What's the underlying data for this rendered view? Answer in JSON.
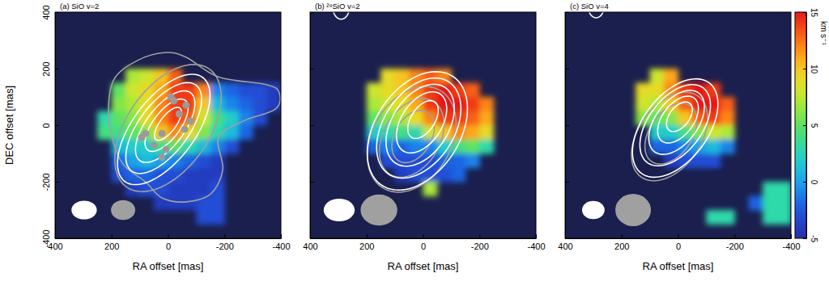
{
  "chart_data": [
    {
      "type": "heatmap",
      "title": "(a) SiO v=2",
      "xlabel": "RA offset [mas]",
      "ylabel": "DEC offset [mas]",
      "xlim": [
        400,
        -400
      ],
      "ylim": [
        -400,
        400
      ],
      "xticks": [
        400,
        200,
        0,
        -200,
        -400
      ],
      "yticks": [
        -400,
        -200,
        0,
        200,
        400
      ],
      "cells": {
        "x": [
          225,
          175,
          125,
          75,
          25,
          -25,
          -75,
          -125,
          -175,
          -225,
          -275,
          -325,
          -375
        ],
        "y": [
          175,
          125,
          75,
          25,
          -25,
          -75,
          -125,
          -175,
          -225,
          -275,
          -325
        ],
        "values": [
          [
            null,
            null,
            7,
            8,
            10,
            13,
            null,
            null,
            null,
            null,
            null,
            null,
            null
          ],
          [
            null,
            5,
            8,
            9,
            11,
            14,
            14,
            12,
            -1,
            -2,
            -3,
            -3,
            -4
          ],
          [
            null,
            6,
            7,
            9,
            12,
            14,
            14,
            10,
            1,
            -1,
            -2,
            -3,
            -4
          ],
          [
            3,
            5,
            6,
            9,
            12,
            14,
            13,
            8,
            4,
            2,
            -1,
            -3,
            null
          ],
          [
            4,
            4,
            5,
            6,
            10,
            12,
            9,
            6,
            3,
            1,
            -2,
            null,
            null
          ],
          [
            null,
            1,
            2,
            2,
            4,
            5,
            3,
            1,
            -1,
            -3,
            null,
            null,
            null
          ],
          [
            null,
            -2,
            0,
            1,
            0,
            -1,
            -2,
            -3,
            -4,
            null,
            null,
            null,
            null
          ],
          [
            null,
            -3,
            -2,
            -2,
            -3,
            -3,
            -4,
            -4,
            -4,
            null,
            null,
            null,
            null
          ],
          [
            null,
            null,
            -4,
            -3,
            -3,
            -4,
            -4,
            -4,
            -3,
            null,
            null,
            null,
            null
          ],
          [
            null,
            null,
            null,
            null,
            -4,
            -4,
            -4,
            -3,
            -3,
            null,
            null,
            null,
            null
          ],
          [
            null,
            null,
            null,
            null,
            null,
            null,
            null,
            -3,
            -3,
            null,
            null,
            null,
            null
          ]
        ]
      },
      "contours": [
        {
          "color": "#a0a0a0",
          "points": [
            [
              7,
              257
            ],
            [
              -65,
              240
            ],
            [
              -179,
              171
            ],
            [
              -351,
              143
            ],
            [
              -394,
              114
            ],
            [
              -380,
              57
            ],
            [
              -265,
              14
            ],
            [
              -179,
              -43
            ],
            [
              -194,
              -157
            ],
            [
              -151,
              -243
            ],
            [
              -65,
              -271
            ],
            [
              21,
              -257
            ],
            [
              80,
              -200
            ],
            [
              165,
              -129
            ],
            [
              208,
              14
            ],
            [
              194,
              157
            ],
            [
              108,
              229
            ]
          ]
        },
        {
          "color": "#a0a0a0",
          "center": [
            0,
            -10
          ],
          "axes": [
            255,
            145
          ],
          "pa": -35
        },
        {
          "color": "white",
          "center": [
            15,
            -15
          ],
          "axes": [
            230,
            110
          ],
          "pa": -37
        },
        {
          "color": "white",
          "center": [
            15,
            -10
          ],
          "axes": [
            190,
            88
          ],
          "pa": -37
        },
        {
          "color": "white",
          "center": [
            10,
            -5
          ],
          "axes": [
            150,
            68
          ],
          "pa": -37
        },
        {
          "color": "white",
          "center": [
            5,
            0
          ],
          "axes": [
            110,
            48
          ],
          "pa": -37
        },
        {
          "color": "white",
          "center": [
            0,
            5
          ],
          "axes": [
            70,
            28
          ],
          "pa": -37
        }
      ],
      "maser_spots": {
        "color": "#9a9a9a",
        "x": [
          -21,
          -64,
          -79,
          -59,
          21,
          79,
          93,
          50,
          7,
          21,
          -40,
          -10
        ],
        "y": [
          86,
          71,
          14,
          -14,
          -29,
          -29,
          -43,
          -71,
          -86,
          -114,
          40,
          100
        ]
      },
      "beams": [
        {
          "color": "white",
          "center": [
            297,
            -300
          ],
          "axes": [
            45,
            33
          ]
        },
        {
          "color": "#a0a0a0",
          "center": [
            159,
            -300
          ],
          "axes": [
            43,
            35
          ]
        }
      ]
    },
    {
      "type": "heatmap",
      "title": "(b) ²⁹SiO v=2",
      "xlabel": "RA offset [mas]",
      "xlim": [
        400,
        -400
      ],
      "ylim": [
        -400,
        400
      ],
      "xticks": [
        400,
        200,
        0,
        -200,
        -400
      ],
      "yticks": [
        -400,
        -200,
        0,
        200,
        400
      ],
      "tick_labels": "x",
      "cells": {
        "x": [
          175,
          125,
          75,
          25,
          -25,
          -75,
          -125,
          -175,
          -225
        ],
        "y": [
          175,
          125,
          75,
          25,
          -25,
          -75,
          -125,
          -175,
          -225
        ],
        "values": [
          [
            null,
            9,
            10,
            12,
            13,
            12,
            null,
            null,
            null
          ],
          [
            8,
            9,
            10,
            12,
            14,
            15,
            14,
            13,
            null
          ],
          [
            7,
            8,
            9,
            11,
            14,
            15,
            15,
            14,
            12
          ],
          [
            5,
            6,
            7,
            9,
            12,
            14,
            14,
            13,
            11
          ],
          [
            2,
            3,
            4,
            3,
            8,
            10,
            12,
            11,
            9
          ],
          [
            -2,
            -1,
            -2,
            -1,
            -1,
            2,
            4,
            5,
            3
          ],
          [
            null,
            -3,
            -3,
            -3,
            -3,
            -2,
            -2,
            -1,
            null
          ],
          [
            null,
            null,
            -4,
            -3,
            -3,
            -3,
            -2,
            null,
            null
          ],
          [
            null,
            null,
            null,
            null,
            7,
            null,
            null,
            null,
            null
          ]
        ]
      },
      "contours": [
        {
          "color": "#a0a0a0",
          "center": [
            40,
            -50
          ],
          "axes": [
            200,
            140
          ],
          "pa": -30
        },
        {
          "color": "#a0a0a0",
          "center": [
            40,
            -45
          ],
          "axes": [
            150,
            100
          ],
          "pa": -30
        },
        {
          "color": "#a0a0a0",
          "center": [
            35,
            -40
          ],
          "axes": [
            100,
            65
          ],
          "pa": -30
        },
        {
          "color": "white",
          "center": [
            20,
            -20
          ],
          "axes": [
            230,
            150
          ],
          "pa": -33
        },
        {
          "color": "white",
          "center": [
            15,
            -10
          ],
          "axes": [
            195,
            125
          ],
          "pa": -33
        },
        {
          "color": "white",
          "center": [
            10,
            0
          ],
          "axes": [
            160,
            100
          ],
          "pa": -33
        },
        {
          "color": "white",
          "center": [
            5,
            10
          ],
          "axes": [
            120,
            72
          ],
          "pa": -33
        },
        {
          "color": "white",
          "center": [
            0,
            20
          ],
          "axes": [
            75,
            42
          ],
          "pa": -33
        },
        {
          "color": "white",
          "center": [
            290,
            420
          ],
          "axes": [
            45,
            30
          ],
          "pa": 0
        }
      ],
      "beams": [
        {
          "color": "white",
          "center": [
            297,
            -300
          ],
          "axes": [
            55,
            40
          ]
        },
        {
          "color": "#a0a0a0",
          "center": [
            156,
            -300
          ],
          "axes": [
            65,
            55
          ]
        }
      ]
    },
    {
      "type": "heatmap",
      "title": "(c) SiO v=4",
      "xlabel": "RA offset [mas]",
      "xlim": [
        400,
        -400
      ],
      "ylim": [
        -400,
        400
      ],
      "xticks": [
        400,
        200,
        0,
        -200,
        -400
      ],
      "yticks": [
        -400,
        -200,
        0,
        200,
        400
      ],
      "tick_labels": "x",
      "cells": {
        "x": [
          175,
          125,
          75,
          25,
          -25,
          -75,
          -125,
          -175,
          -225,
          -275,
          -325,
          -375
        ],
        "y": [
          175,
          125,
          75,
          25,
          -25,
          -75,
          -125,
          -175,
          -225,
          -275,
          -325
        ],
        "values": [
          [
            null,
            null,
            8,
            11,
            null,
            null,
            null,
            null,
            null,
            null,
            null,
            null
          ],
          [
            null,
            9,
            9,
            12,
            14,
            15,
            14,
            null,
            null,
            null,
            null,
            null
          ],
          [
            null,
            8,
            7,
            10,
            13,
            15,
            15,
            13,
            null,
            null,
            null,
            null
          ],
          [
            null,
            6,
            5,
            6,
            10,
            13,
            14,
            12,
            null,
            null,
            null,
            null
          ],
          [
            null,
            null,
            2,
            2,
            4,
            6,
            8,
            7,
            null,
            null,
            null,
            null
          ],
          [
            null,
            null,
            -2,
            -2,
            -1,
            0,
            1,
            -1,
            null,
            null,
            null,
            null
          ],
          [
            null,
            null,
            null,
            -4,
            -3,
            -3,
            -3,
            null,
            null,
            null,
            null,
            null
          ],
          [
            null,
            null,
            null,
            null,
            null,
            null,
            null,
            null,
            null,
            null,
            null,
            null
          ],
          [
            null,
            null,
            null,
            null,
            null,
            null,
            null,
            null,
            null,
            null,
            3,
            3
          ],
          [
            null,
            null,
            null,
            null,
            null,
            null,
            null,
            null,
            null,
            -2,
            3,
            3
          ],
          [
            null,
            null,
            null,
            null,
            null,
            null,
            3,
            3,
            null,
            null,
            3,
            3
          ]
        ]
      },
      "contours": [
        {
          "color": "#a0a0a0",
          "center": [
            30,
            -40
          ],
          "axes": [
            175,
            110
          ],
          "pa": -35
        },
        {
          "color": "#a0a0a0",
          "center": [
            25,
            -30
          ],
          "axes": [
            120,
            75
          ],
          "pa": -35
        },
        {
          "color": "white",
          "center": [
            10,
            -10
          ],
          "axes": [
            200,
            115
          ],
          "pa": -37
        },
        {
          "color": "white",
          "center": [
            10,
            0
          ],
          "axes": [
            165,
            95
          ],
          "pa": -37
        },
        {
          "color": "white",
          "center": [
            5,
            10
          ],
          "axes": [
            130,
            75
          ],
          "pa": -37
        },
        {
          "color": "white",
          "center": [
            0,
            20
          ],
          "axes": [
            95,
            55
          ],
          "pa": -37
        },
        {
          "color": "white",
          "center": [
            -5,
            30
          ],
          "axes": [
            60,
            35
          ],
          "pa": -37
        },
        {
          "color": "white",
          "center": [
            290,
            420
          ],
          "axes": [
            40,
            28
          ],
          "pa": 0
        }
      ],
      "beams": [
        {
          "color": "white",
          "center": [
            300,
            -300
          ],
          "axes": [
            40,
            32
          ]
        },
        {
          "color": "#a0a0a0",
          "center": [
            159,
            -300
          ],
          "axes": [
            63,
            57
          ]
        }
      ],
      "colorbar": {
        "range": [
          -5,
          15
        ],
        "ticks": [
          -5,
          0,
          5,
          10,
          15
        ],
        "label": "km s⁻¹"
      }
    }
  ]
}
